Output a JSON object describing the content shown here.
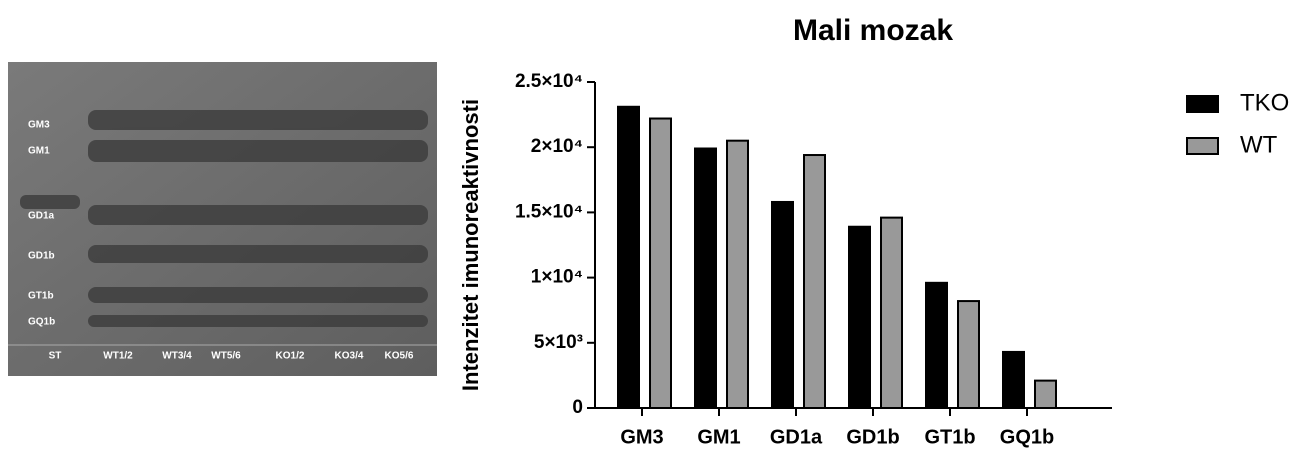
{
  "gel": {
    "band_labels": [
      "GM3",
      "GM1",
      "GD1a",
      "GD1b",
      "GT1b",
      "GQ1b"
    ],
    "lane_labels": [
      "ST",
      "WT1/2",
      "WT3/4",
      "WT5/6",
      "KO1/2",
      "KO3/4",
      "KO5/6"
    ]
  },
  "chart_data": {
    "type": "bar",
    "title": "Mali mozak",
    "y_label": "Intenzitet imunoreaktivnosti",
    "categories": [
      "GM3",
      "GM1",
      "GD1a",
      "GD1b",
      "GT1b",
      "GQ1b"
    ],
    "series": [
      {
        "name": "TKO",
        "color": "#000000",
        "values": [
          23100,
          19900,
          15800,
          13900,
          9600,
          4300
        ]
      },
      {
        "name": "WT",
        "color": "#999999",
        "values": [
          22200,
          20500,
          19400,
          14600,
          8200,
          2100
        ]
      }
    ],
    "ylim": [
      0,
      25000
    ],
    "yticks": [
      0,
      {
        "value": 5000,
        "label": "5×10³"
      },
      {
        "value": 10000,
        "label": "1×10⁴"
      },
      {
        "value": 15000,
        "label": "1.5×10⁴"
      },
      {
        "value": 20000,
        "label": "2×10⁴"
      },
      {
        "value": 25000,
        "label": "2.5×10⁴"
      }
    ],
    "grid": false
  }
}
